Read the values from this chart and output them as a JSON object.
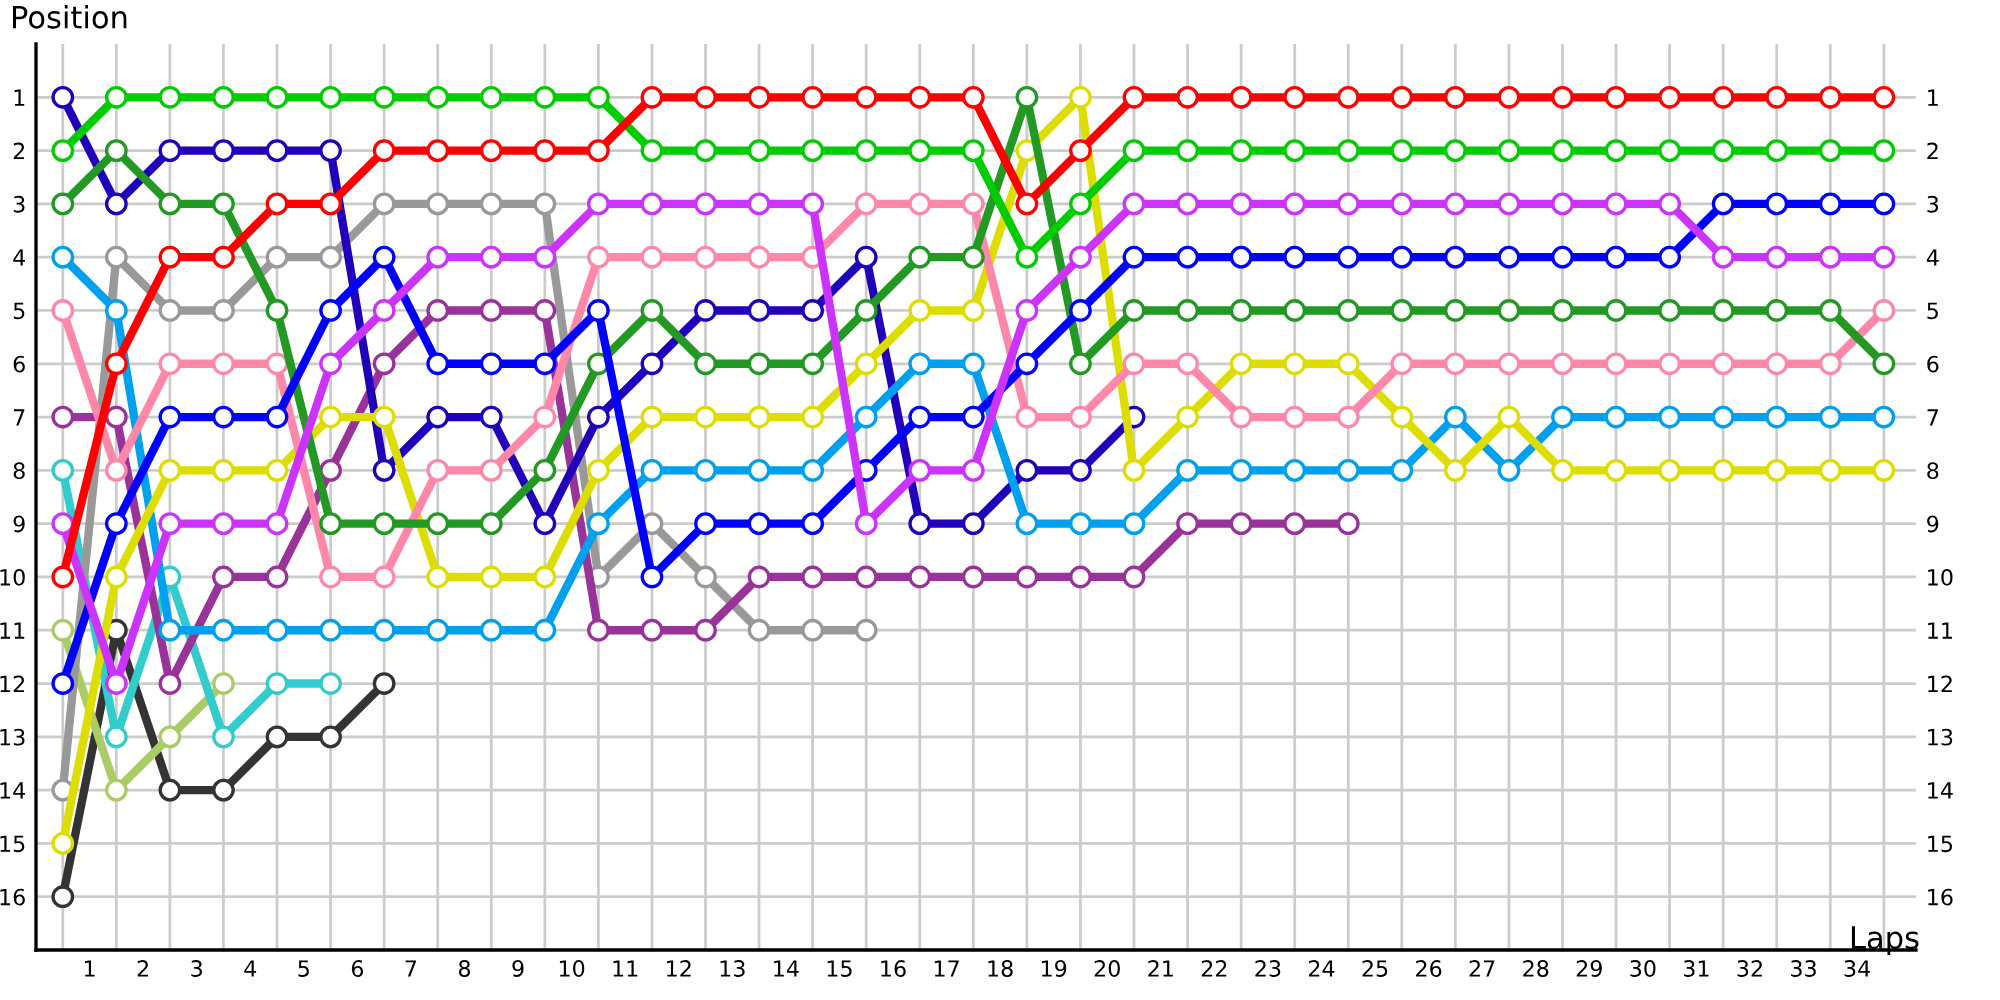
{
  "chart_data": {
    "type": "line",
    "xlabel": "Laps",
    "ylabel": "Position",
    "marker": "circle",
    "line_style": "solid",
    "grid": true,
    "x": [
      0,
      1,
      2,
      3,
      4,
      5,
      6,
      7,
      8,
      9,
      10,
      11,
      12,
      13,
      14,
      15,
      16,
      17,
      18,
      19,
      20,
      21,
      22,
      23,
      24,
      25,
      26,
      27,
      28,
      29,
      30,
      31,
      32,
      33,
      34
    ],
    "xlim": [
      -0.5,
      34.6
    ],
    "xticks": [
      {
        "value": 0.5,
        "label": "1"
      },
      {
        "value": 1.5,
        "label": "2"
      },
      {
        "value": 2.5,
        "label": "3"
      },
      {
        "value": 3.5,
        "label": "4"
      },
      {
        "value": 4.5,
        "label": "5"
      },
      {
        "value": 5.5,
        "label": "6"
      },
      {
        "value": 6.5,
        "label": "7"
      },
      {
        "value": 7.5,
        "label": "8"
      },
      {
        "value": 8.5,
        "label": "9"
      },
      {
        "value": 9.5,
        "label": "10"
      },
      {
        "value": 10.5,
        "label": "11"
      },
      {
        "value": 11.5,
        "label": "12"
      },
      {
        "value": 12.5,
        "label": "13"
      },
      {
        "value": 13.5,
        "label": "14"
      },
      {
        "value": 14.5,
        "label": "15"
      },
      {
        "value": 15.5,
        "label": "16"
      },
      {
        "value": 16.5,
        "label": "17"
      },
      {
        "value": 17.5,
        "label": "18"
      },
      {
        "value": 18.5,
        "label": "19"
      },
      {
        "value": 19.5,
        "label": "20"
      },
      {
        "value": 20.5,
        "label": "21"
      },
      {
        "value": 21.5,
        "label": "22"
      },
      {
        "value": 22.5,
        "label": "23"
      },
      {
        "value": 23.5,
        "label": "24"
      },
      {
        "value": 24.5,
        "label": "25"
      },
      {
        "value": 25.5,
        "label": "26"
      },
      {
        "value": 26.5,
        "label": "27"
      },
      {
        "value": 27.5,
        "label": "28"
      },
      {
        "value": 28.5,
        "label": "29"
      },
      {
        "value": 29.5,
        "label": "30"
      },
      {
        "value": 30.5,
        "label": "31"
      },
      {
        "value": 31.5,
        "label": "32"
      },
      {
        "value": 32.5,
        "label": "33"
      },
      {
        "value": 33.5,
        "label": "34"
      }
    ],
    "ylim": [
      17,
      0
    ],
    "yticks": [
      1,
      2,
      3,
      4,
      5,
      6,
      7,
      8,
      9,
      10,
      11,
      12,
      13,
      14,
      15,
      16
    ],
    "y2lim": [
      17,
      0
    ],
    "y2ticks": [
      1,
      2,
      3,
      4,
      5,
      6,
      7,
      8,
      9,
      10,
      11,
      12,
      13,
      14,
      15,
      16
    ],
    "series": [
      {
        "color": "#333333",
        "values": [
          16,
          11,
          14,
          14,
          13,
          13,
          12,
          null,
          null,
          null,
          null,
          null,
          null,
          null,
          null,
          null,
          null,
          null,
          null,
          null,
          null,
          null,
          null,
          null,
          null,
          null,
          null,
          null,
          null,
          null,
          null,
          null,
          null,
          null,
          null
        ]
      },
      {
        "color": "#aacc66",
        "values": [
          11,
          14,
          13,
          12,
          null,
          null,
          null,
          null,
          null,
          null,
          null,
          null,
          null,
          null,
          null,
          null,
          null,
          null,
          null,
          null,
          null,
          null,
          null,
          null,
          null,
          null,
          null,
          null,
          null,
          null,
          null,
          null,
          null,
          null,
          null
        ]
      },
      {
        "color": "#33cccc",
        "values": [
          8,
          13,
          10,
          13,
          12,
          12,
          null,
          null,
          null,
          null,
          null,
          null,
          null,
          null,
          null,
          null,
          null,
          null,
          null,
          null,
          null,
          null,
          null,
          null,
          null,
          null,
          null,
          null,
          null,
          null,
          null,
          null,
          null,
          null,
          null
        ]
      },
      {
        "color": "#999999",
        "values": [
          14,
          4,
          5,
          5,
          4,
          4,
          3,
          3,
          3,
          3,
          10,
          9,
          10,
          11,
          11,
          11,
          null,
          null,
          null,
          null,
          null,
          null,
          null,
          null,
          null,
          null,
          null,
          null,
          null,
          null,
          null,
          null,
          null,
          null,
          null
        ]
      },
      {
        "color": "#993399",
        "values": [
          7,
          7,
          12,
          10,
          10,
          8,
          6,
          5,
          5,
          5,
          11,
          11,
          11,
          10,
          10,
          10,
          10,
          10,
          10,
          10,
          10,
          9,
          9,
          9,
          9,
          null,
          null,
          null,
          null,
          null,
          null,
          null,
          null,
          null,
          null
        ]
      },
      {
        "color": "#2200bb",
        "values": [
          1,
          3,
          2,
          2,
          2,
          2,
          8,
          7,
          7,
          9,
          7,
          6,
          5,
          5,
          5,
          4,
          9,
          9,
          8,
          8,
          7,
          null,
          null,
          null,
          null,
          null,
          null,
          null,
          null,
          null,
          null,
          null,
          null,
          null,
          null
        ]
      },
      {
        "color": "#00a0f0",
        "values": [
          4,
          5,
          11,
          11,
          11,
          11,
          11,
          11,
          11,
          11,
          9,
          8,
          8,
          8,
          8,
          7,
          6,
          6,
          9,
          9,
          9,
          8,
          8,
          8,
          8,
          8,
          7,
          8,
          7,
          7,
          7,
          7,
          7,
          7,
          7
        ]
      },
      {
        "color": "#dddd00",
        "values": [
          15,
          10,
          8,
          8,
          8,
          7,
          7,
          10,
          10,
          10,
          8,
          7,
          7,
          7,
          7,
          6,
          5,
          5,
          2,
          1,
          8,
          7,
          6,
          6,
          6,
          7,
          8,
          7,
          8,
          8,
          8,
          8,
          8,
          8,
          8
        ]
      },
      {
        "color": "#ff88aa",
        "values": [
          5,
          8,
          6,
          6,
          6,
          10,
          10,
          8,
          8,
          7,
          4,
          4,
          4,
          4,
          4,
          3,
          3,
          3,
          7,
          7,
          6,
          6,
          7,
          7,
          7,
          6,
          6,
          6,
          6,
          6,
          6,
          6,
          6,
          6,
          5
        ]
      },
      {
        "color": "#229922",
        "values": [
          3,
          2,
          3,
          3,
          5,
          9,
          9,
          9,
          9,
          8,
          6,
          5,
          6,
          6,
          6,
          5,
          4,
          4,
          1,
          6,
          5,
          5,
          5,
          5,
          5,
          5,
          5,
          5,
          5,
          5,
          5,
          5,
          5,
          5,
          6
        ]
      },
      {
        "color": "#0000ff",
        "values": [
          12,
          9,
          7,
          7,
          7,
          5,
          4,
          6,
          6,
          6,
          5,
          10,
          9,
          9,
          9,
          8,
          7,
          7,
          6,
          5,
          4,
          4,
          4,
          4,
          4,
          4,
          4,
          4,
          4,
          4,
          4,
          3,
          3,
          3,
          3
        ]
      },
      {
        "color": "#cc33ff",
        "values": [
          9,
          12,
          9,
          9,
          9,
          6,
          5,
          4,
          4,
          4,
          3,
          3,
          3,
          3,
          3,
          9,
          8,
          8,
          5,
          4,
          3,
          3,
          3,
          3,
          3,
          3,
          3,
          3,
          3,
          3,
          3,
          4,
          4,
          4,
          4
        ]
      },
      {
        "color": "#00cc00",
        "values": [
          2,
          1,
          1,
          1,
          1,
          1,
          1,
          1,
          1,
          1,
          1,
          2,
          2,
          2,
          2,
          2,
          2,
          2,
          4,
          3,
          2,
          2,
          2,
          2,
          2,
          2,
          2,
          2,
          2,
          2,
          2,
          2,
          2,
          2,
          2
        ]
      },
      {
        "color": "#ff0000",
        "values": [
          10,
          6,
          4,
          4,
          3,
          3,
          2,
          2,
          2,
          2,
          2,
          1,
          1,
          1,
          1,
          1,
          1,
          1,
          3,
          2,
          1,
          1,
          1,
          1,
          1,
          1,
          1,
          1,
          1,
          1,
          1,
          1,
          1,
          1,
          1
        ]
      }
    ]
  }
}
